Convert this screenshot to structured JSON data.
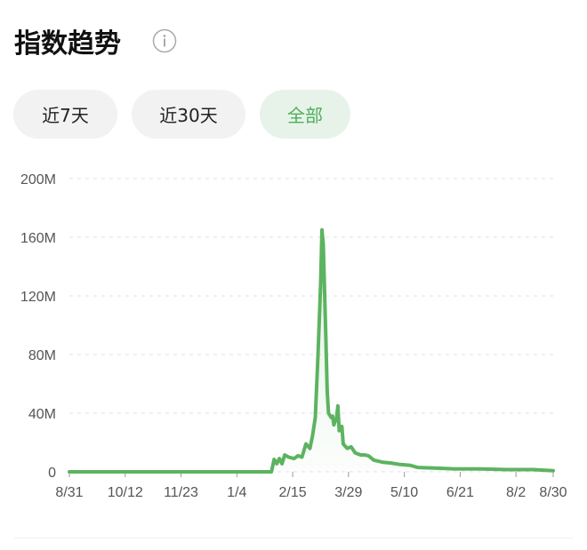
{
  "header": {
    "title": "指数趋势"
  },
  "tabs": [
    "近7天",
    "近30天",
    "全部"
  ],
  "chart_data": {
    "type": "line",
    "x": [
      0,
      150,
      152,
      154,
      156,
      158,
      160,
      162,
      165,
      169,
      172,
      175,
      178,
      181,
      183,
      185,
      187,
      189,
      190,
      191,
      193,
      194,
      195,
      197,
      198,
      199,
      201,
      202,
      203,
      205,
      206,
      209,
      212,
      215,
      219,
      222,
      225,
      229,
      236,
      242,
      249,
      256,
      262,
      276,
      289,
      309,
      329,
      349,
      364
    ],
    "series": [
      {
        "color": "#5cb360",
        "values": [
          0,
          0,
          0,
          8500000,
          5500000,
          9000000,
          5500000,
          11500000,
          10000000,
          9000000,
          11000000,
          10000000,
          19000000,
          16000000,
          25000000,
          37000000,
          79000000,
          128000000,
          165000000,
          155000000,
          91000000,
          55000000,
          40000000,
          37000000,
          38000000,
          32000000,
          37000000,
          45000000,
          28000000,
          31000000,
          19000000,
          16000000,
          17000000,
          13000000,
          11500000,
          11500000,
          11000000,
          8000000,
          6500000,
          6000000,
          5000000,
          4500000,
          3000000,
          2500000,
          2000000,
          2000000,
          1500000,
          1500000,
          800000
        ]
      }
    ],
    "xlim": [
      0,
      364
    ],
    "xticks": [
      {
        "value": 0,
        "label": "8/31"
      },
      {
        "value": 42,
        "label": "10/12"
      },
      {
        "value": 84,
        "label": "11/23"
      },
      {
        "value": 126,
        "label": "1/4"
      },
      {
        "value": 168,
        "label": "2/15"
      },
      {
        "value": 210,
        "label": "3/29"
      },
      {
        "value": 252,
        "label": "5/10"
      },
      {
        "value": 294,
        "label": "6/21"
      },
      {
        "value": 336,
        "label": "8/2"
      },
      {
        "value": 364,
        "label": "8/30"
      }
    ],
    "ylim": [
      0,
      200000000
    ],
    "yticks": [
      0,
      {
        "value": 40000000,
        "label": "40M"
      },
      {
        "value": 80000000,
        "label": "80M"
      },
      {
        "value": 120000000,
        "label": "120M"
      },
      {
        "value": 160000000,
        "label": "160M"
      },
      {
        "value": 200000000,
        "label": "200M"
      }
    ],
    "grid": true
  }
}
